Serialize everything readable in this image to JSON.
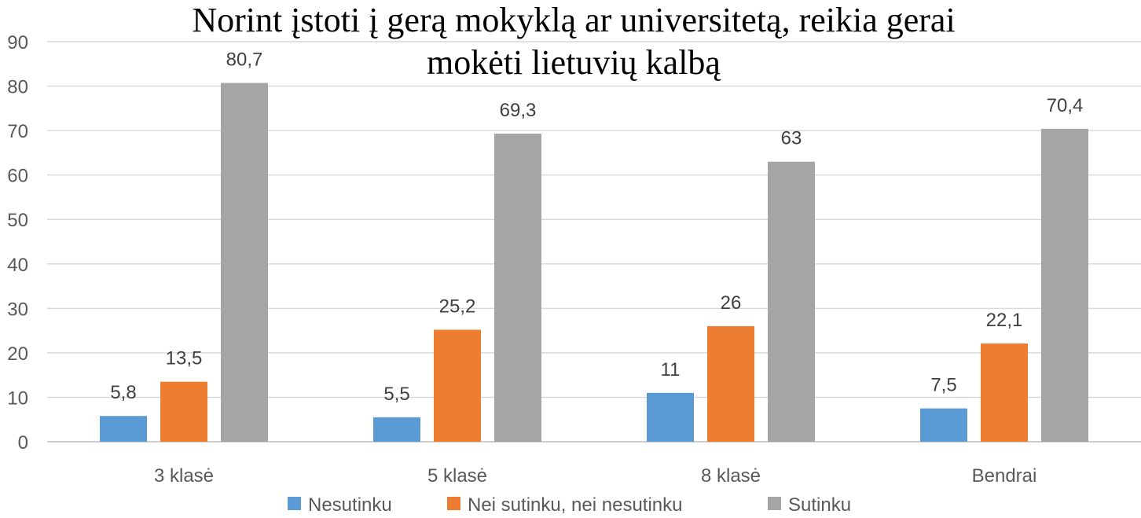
{
  "chart_data": {
    "type": "bar",
    "title": [
      "Norint įstoti į gerą mokyklą ar universitetą, reikia gerai",
      "mokėti lietuvių kalbą"
    ],
    "categories": [
      "3 klasė",
      "5 klasė",
      "8 klasė",
      "Bendrai"
    ],
    "series": [
      {
        "name": "Nesutinku",
        "color": "#5b9bd5",
        "values": [
          5.8,
          5.5,
          11,
          7.5
        ],
        "labels": [
          "5,8",
          "5,5",
          "11",
          "7,5"
        ]
      },
      {
        "name": "Nei sutinku, nei nesutinku",
        "color": "#ed7d31",
        "values": [
          13.5,
          25.2,
          26,
          22.1
        ],
        "labels": [
          "13,5",
          "25,2",
          "26",
          "22,1"
        ]
      },
      {
        "name": "Sutinku",
        "color": "#a5a5a5",
        "values": [
          80.7,
          69.3,
          63,
          70.4
        ],
        "labels": [
          "80,7",
          "69,3",
          "63",
          "70,4"
        ]
      }
    ],
    "ylim": [
      0,
      90
    ],
    "yticks": [
      "0",
      "10",
      "20",
      "30",
      "40",
      "50",
      "60",
      "70",
      "80",
      "90"
    ],
    "grid": true,
    "legend_position": "bottom"
  }
}
